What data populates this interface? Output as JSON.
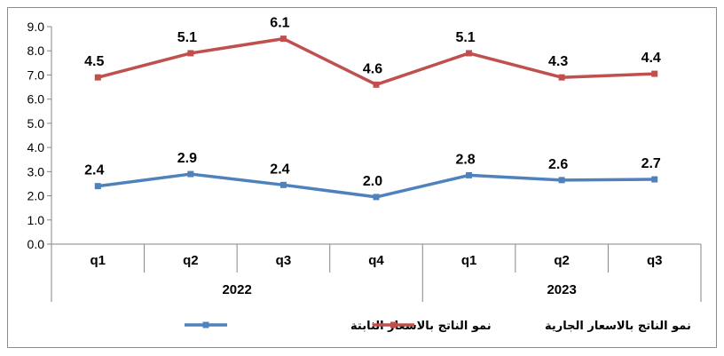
{
  "chart_data": {
    "type": "line",
    "categories": [
      "q1",
      "q2",
      "q3",
      "q4",
      "q1",
      "q2",
      "q3"
    ],
    "groups": [
      {
        "label": "2022",
        "span": 4
      },
      {
        "label": "2023",
        "span": 3
      }
    ],
    "y_ticks": [
      "0.0",
      "1.0",
      "2.0",
      "3.0",
      "4.0",
      "5.0",
      "6.0",
      "7.0",
      "8.0",
      "9.0"
    ],
    "ylim": [
      0,
      9
    ],
    "grid": false,
    "legend_position": "bottom",
    "series": [
      {
        "name": "نمو الناتج بالاسعار الجارية",
        "color": "#c0504d",
        "plot_values": [
          6.9,
          7.9,
          8.5,
          6.6,
          7.9,
          6.9,
          7.05
        ],
        "labels": [
          "4.5",
          "5.1",
          "6.1",
          "4.6",
          "5.1",
          "4.3",
          "4.4"
        ]
      },
      {
        "name": "نمو الناتج بالاسعار الثابتة",
        "color": "#4f81bd",
        "plot_values": [
          2.4,
          2.9,
          2.45,
          1.95,
          2.85,
          2.65,
          2.68
        ],
        "labels": [
          "2.4",
          "2.9",
          "2.4",
          "2.0",
          "2.8",
          "2.6",
          "2.7"
        ]
      }
    ]
  }
}
